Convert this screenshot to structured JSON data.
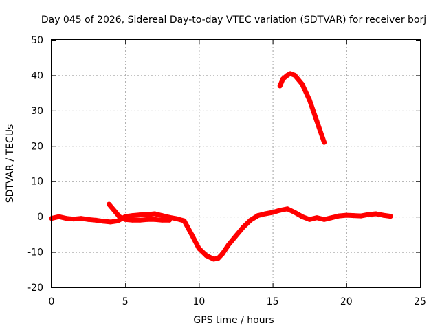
{
  "chart_data": {
    "type": "line",
    "title": "Day 045 of 2026, Sidereal Day-to-day VTEC variation (SDTVAR) for receiver borj",
    "xlabel": "GPS time / hours",
    "ylabel": "SDTVAR / TECUs",
    "xlim": [
      0,
      25
    ],
    "ylim": [
      -20,
      50
    ],
    "x_ticks": [
      0,
      5,
      10,
      15,
      20,
      25
    ],
    "y_ticks": [
      -20,
      -10,
      0,
      10,
      20,
      30,
      40,
      50
    ],
    "grid": true,
    "legend": "none",
    "series": [
      {
        "name": "SDTVAR main",
        "color": "#ff0000",
        "x": [
          0,
          0.5,
          1,
          1.5,
          2,
          2.5,
          3,
          3.5,
          4,
          4.5,
          5,
          5.5,
          6,
          6.5,
          7,
          7.5,
          8,
          8.5,
          9,
          9.5,
          10,
          10.5,
          11,
          11.3,
          11.6,
          12,
          12.5,
          13,
          13.5,
          14,
          14.5,
          15,
          15.5,
          16,
          16.5,
          17,
          17.5,
          18,
          18.5,
          19,
          19.5,
          20,
          20.5,
          21,
          21.5,
          22,
          22.5,
          23
        ],
        "values": [
          -0.5,
          0,
          -0.5,
          -0.7,
          -0.5,
          -0.8,
          -1,
          -1.3,
          -1.5,
          -1.2,
          0,
          0.3,
          0.5,
          0.6,
          0.8,
          0.3,
          -0.2,
          -0.6,
          -1.2,
          -5,
          -9,
          -11,
          -12,
          -11.8,
          -10.5,
          -8,
          -5.5,
          -3,
          -1,
          0.3,
          0.8,
          1.2,
          1.8,
          2.2,
          1.2,
          0,
          -0.8,
          -0.3,
          -0.8,
          -0.3,
          0.2,
          0.4,
          0.3,
          0.2,
          0.6,
          0.8,
          0.4,
          0.1
        ]
      },
      {
        "name": "SDTVAR secondary branch",
        "color": "#ff0000",
        "x": [
          3.9,
          4.3,
          4.6,
          5,
          5.5,
          6,
          6.5,
          7,
          7.5,
          8
        ],
        "values": [
          3.5,
          1.5,
          0,
          -0.8,
          -1,
          -1,
          -0.8,
          -0.8,
          -1,
          -1
        ]
      },
      {
        "name": "SDTVAR high branch",
        "color": "#ff0000",
        "x": [
          15.5,
          15.7,
          16,
          16.2,
          16.5,
          17,
          17.5,
          18,
          18.5
        ],
        "values": [
          37,
          39,
          40,
          40.5,
          40,
          37.5,
          33,
          27,
          21
        ]
      }
    ]
  }
}
